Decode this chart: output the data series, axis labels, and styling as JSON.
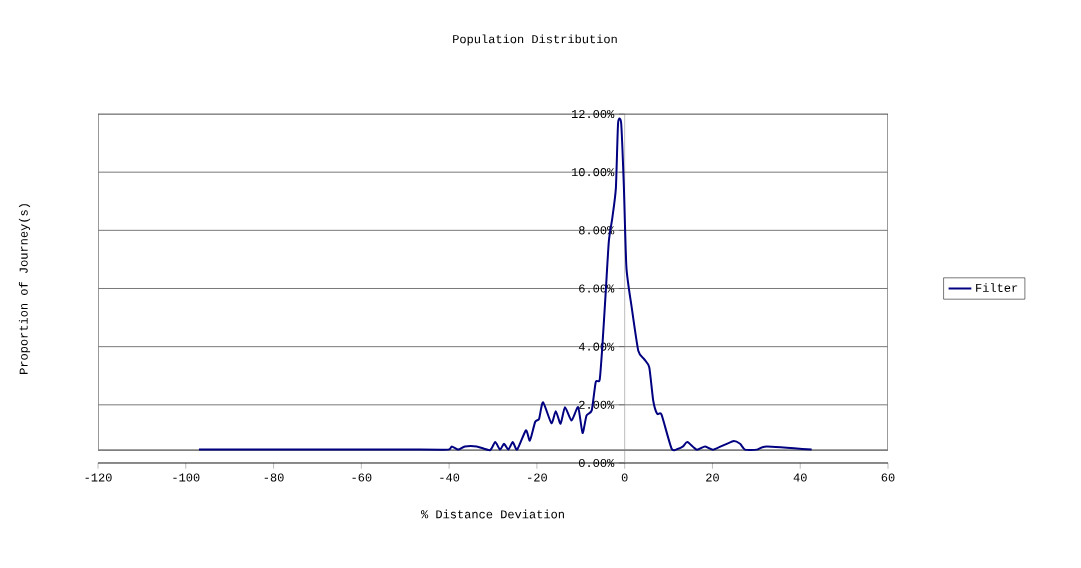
{
  "chart_data": {
    "type": "line",
    "title": "Population Distribution",
    "xlabel": "% Distance Deviation",
    "ylabel": "Proportion of Journey(s)",
    "x": [
      -97,
      -46.6,
      -40.2,
      -39.4,
      -37.9,
      -36.4,
      -33.7,
      -30.7,
      -29.5,
      -28.4,
      -27.5,
      -26.5,
      -25.5,
      -24.5,
      -22.5,
      -21.6,
      -20.4,
      -19.5,
      -18.6,
      -16.7,
      -15.7,
      -14.6,
      -13.6,
      -12.1,
      -10.6,
      -9.6,
      -8.7,
      -7.5,
      -6.6,
      -5.7,
      -5.1,
      -4.3,
      -3.6,
      -2.8,
      -2.0,
      -1.5,
      -0.8,
      -0.2,
      0.4,
      1.6,
      3.1,
      4.4,
      5.6,
      6.5,
      7.4,
      8.4,
      10.7,
      12.2,
      13.3,
      14.3,
      16.4,
      18.3,
      20.2,
      24.7,
      26.3,
      27.4,
      30.1,
      32.4,
      42.6
    ],
    "series": [
      {
        "name": "Filter",
        "color": "#000080",
        "values": [
          0.46,
          0.46,
          0.46,
          0.57,
          0.46,
          0.57,
          0.57,
          0.44,
          0.72,
          0.46,
          0.66,
          0.46,
          0.72,
          0.46,
          1.12,
          0.77,
          1.41,
          1.52,
          2.09,
          1.37,
          1.78,
          1.35,
          1.92,
          1.46,
          1.92,
          1.03,
          1.63,
          1.81,
          2.78,
          2.86,
          3.98,
          5.92,
          7.64,
          8.44,
          9.46,
          11.69,
          11.69,
          9.58,
          6.72,
          5.35,
          3.86,
          3.58,
          3.29,
          2.15,
          1.69,
          1.66,
          0.49,
          0.49,
          0.57,
          0.72,
          0.46,
          0.57,
          0.46,
          0.75,
          0.66,
          0.46,
          0.46,
          0.57,
          0.46
        ]
      }
    ],
    "xlim": [
      -120,
      60
    ],
    "xticks": [
      -120,
      -100,
      -80,
      -60,
      -40,
      -20,
      0,
      20,
      40,
      60
    ],
    "ylim": [
      0,
      12
    ],
    "yticks": [
      {
        "value": 0,
        "label": "0.00%"
      },
      {
        "value": 2,
        "label": "2.00%"
      },
      {
        "value": 4,
        "label": "4.00%"
      },
      {
        "value": 6,
        "label": "6.00%"
      },
      {
        "value": 8,
        "label": "8.00%"
      },
      {
        "value": 10,
        "label": "10.00%"
      },
      {
        "value": 12,
        "label": "12.00%"
      }
    ],
    "grid": "y",
    "legend": "right",
    "line_style": "solid"
  }
}
